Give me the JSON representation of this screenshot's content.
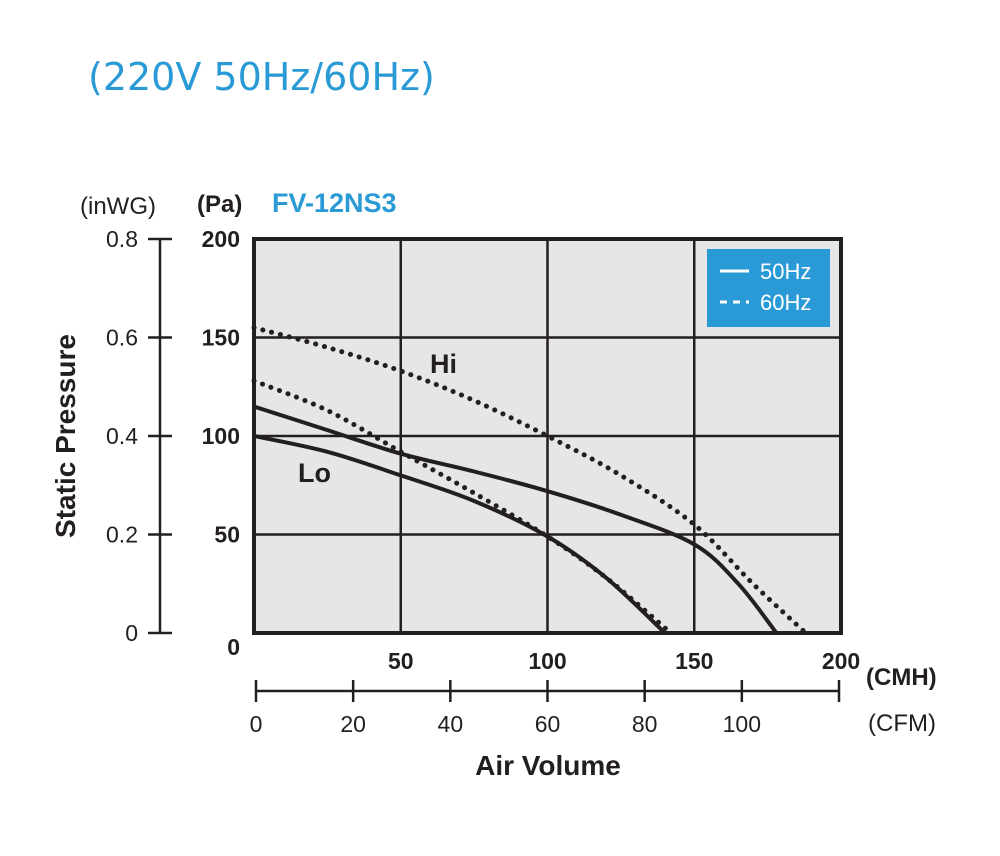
{
  "header": {
    "title": "(220V 50Hz/60Hz)"
  },
  "chart_data": {
    "type": "line",
    "title": "FV-12NS3",
    "xlabel": "Air Volume",
    "ylabel": "Static Pressure",
    "x_unit": "(CMH)",
    "x2_unit": "(CFM)",
    "y_unit": "(Pa)",
    "y2_unit": "(inWG)",
    "xlim": [
      0,
      200
    ],
    "ylim": [
      0,
      200
    ],
    "x_ticks": [
      "50",
      "100",
      "150",
      "200"
    ],
    "y_ticks": [
      "0",
      "50",
      "100",
      "150",
      "200"
    ],
    "x2_lim": [
      0,
      120
    ],
    "x2_ticks": [
      "0",
      "20",
      "40",
      "60",
      "80",
      "100"
    ],
    "y2_ticks": [
      "0",
      "0.2",
      "0.4",
      "0.6",
      "0.8"
    ],
    "grid": true,
    "legend_position": "top-right",
    "legend": [
      {
        "label": "50Hz",
        "style": "solid"
      },
      {
        "label": "60Hz",
        "style": "dashed"
      }
    ],
    "curve_labels": [
      "Hi",
      "Lo"
    ],
    "series": [
      {
        "legend": "50Hz",
        "curve": "Hi",
        "points": [
          [
            0,
            115
          ],
          [
            25,
            103
          ],
          [
            50,
            91
          ],
          [
            75,
            82
          ],
          [
            100,
            72
          ],
          [
            125,
            60
          ],
          [
            150,
            45
          ],
          [
            165,
            25
          ],
          [
            178,
            0
          ]
        ]
      },
      {
        "legend": "60Hz",
        "curve": "Hi",
        "points": [
          [
            0,
            155
          ],
          [
            25,
            145
          ],
          [
            50,
            133
          ],
          [
            75,
            118
          ],
          [
            100,
            100
          ],
          [
            125,
            80
          ],
          [
            150,
            55
          ],
          [
            170,
            25
          ],
          [
            188,
            0
          ]
        ]
      },
      {
        "legend": "50Hz",
        "curve": "Lo",
        "points": [
          [
            0,
            100
          ],
          [
            25,
            92
          ],
          [
            50,
            80
          ],
          [
            75,
            67
          ],
          [
            100,
            49
          ],
          [
            120,
            28
          ],
          [
            140,
            0
          ]
        ]
      },
      {
        "legend": "60Hz",
        "curve": "Lo",
        "points": [
          [
            0,
            128
          ],
          [
            25,
            113
          ],
          [
            50,
            92
          ],
          [
            75,
            71
          ],
          [
            100,
            49
          ],
          [
            120,
            28
          ],
          [
            142,
            0
          ]
        ]
      }
    ]
  },
  "colors": {
    "accent": "#2a9ad6",
    "plot_bg": "#e6e6e8",
    "ink": "#231f20"
  }
}
